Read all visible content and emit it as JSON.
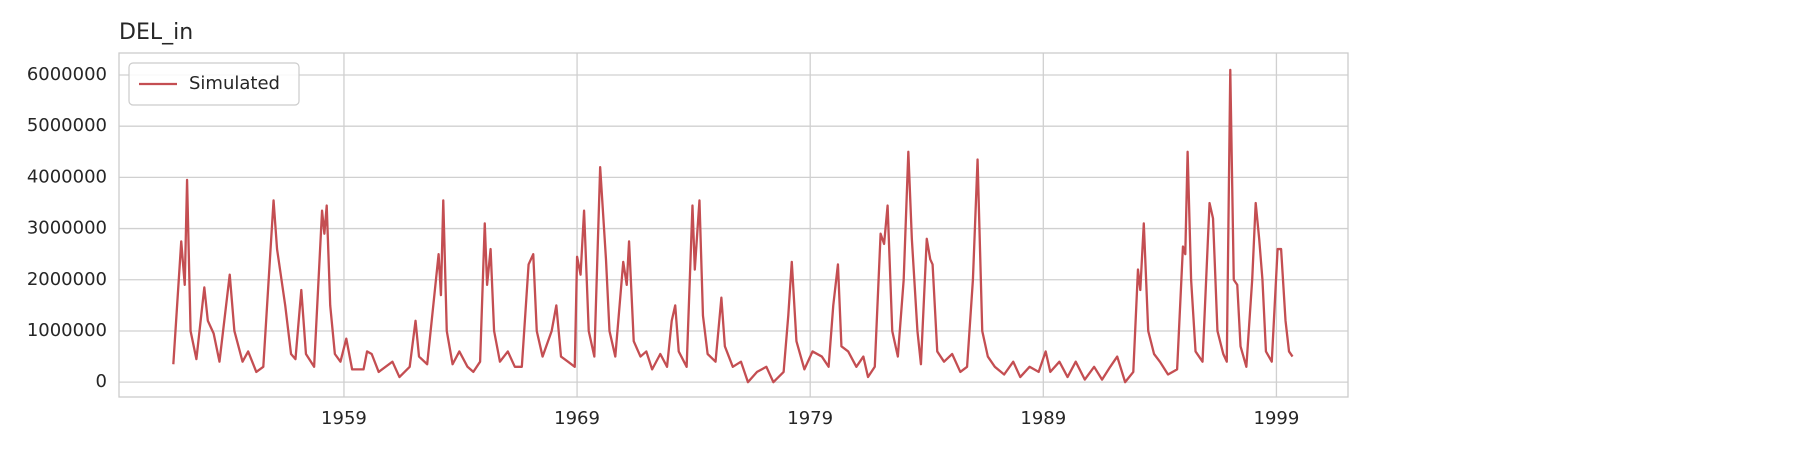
{
  "chart_data": {
    "type": "line",
    "title": "DEL_in",
    "legend": "upper left",
    "grid": true,
    "xlim": [
      1949.35,
      2002.07
    ],
    "xticks": [
      1959,
      1969,
      1979,
      1989,
      1999
    ],
    "ylim": [
      -290000,
      6430000
    ],
    "yticks": [
      0,
      1000000,
      2000000,
      3000000,
      4000000,
      5000000,
      6000000
    ],
    "x": [
      1951.68,
      1952.02,
      1952.17,
      1952.27,
      1952.42,
      1952.67,
      1953.01,
      1953.16,
      1953.41,
      1953.66,
      1954.1,
      1954.3,
      1954.65,
      1954.89,
      1955.24,
      1955.54,
      1955.98,
      1956.13,
      1956.48,
      1956.73,
      1956.92,
      1957.17,
      1957.37,
      1957.72,
      1958.06,
      1958.16,
      1958.26,
      1958.41,
      1958.61,
      1958.85,
      1959.1,
      1959.35,
      1959.84,
      1959.99,
      1960.19,
      1960.49,
      1961.08,
      1961.38,
      1961.82,
      1962.07,
      1962.22,
      1962.57,
      1963.06,
      1963.16,
      1963.26,
      1963.41,
      1963.66,
      1963.95,
      1964.3,
      1964.55,
      1964.84,
      1965.04,
      1965.14,
      1965.29,
      1965.44,
      1965.69,
      1966.03,
      1966.33,
      1966.63,
      1966.92,
      1967.12,
      1967.27,
      1967.52,
      1967.91,
      1968.11,
      1968.31,
      1968.61,
      1968.9,
      1969.0,
      1969.15,
      1969.3,
      1969.5,
      1969.74,
      1969.99,
      1970.24,
      1970.39,
      1970.64,
      1970.98,
      1971.13,
      1971.23,
      1971.43,
      1971.72,
      1971.97,
      1972.22,
      1972.57,
      1972.86,
      1973.06,
      1973.21,
      1973.36,
      1973.7,
      1973.95,
      1974.05,
      1974.25,
      1974.4,
      1974.6,
      1974.94,
      1975.19,
      1975.34,
      1975.68,
      1976.03,
      1976.33,
      1976.72,
      1977.12,
      1977.42,
      1977.86,
      1978.06,
      1978.21,
      1978.41,
      1978.75,
      1979.1,
      1979.5,
      1979.79,
      1979.99,
      1980.19,
      1980.34,
      1980.63,
      1980.98,
      1981.28,
      1981.48,
      1981.77,
      1982.02,
      1982.17,
      1982.32,
      1982.52,
      1982.76,
      1983.01,
      1983.21,
      1983.36,
      1983.6,
      1983.75,
      1984.0,
      1984.15,
      1984.25,
      1984.45,
      1984.74,
      1985.09,
      1985.44,
      1985.73,
      1985.98,
      1986.18,
      1986.38,
      1986.62,
      1986.92,
      1987.32,
      1987.71,
      1988.01,
      1988.41,
      1988.8,
      1989.1,
      1989.3,
      1989.69,
      1990.04,
      1990.39,
      1990.78,
      1991.18,
      1991.52,
      1991.87,
      1992.17,
      1992.51,
      1992.86,
      1993.06,
      1993.16,
      1993.31,
      1993.5,
      1993.75,
      1994.0,
      1994.35,
      1994.74,
      1994.99,
      1995.09,
      1995.19,
      1995.34,
      1995.53,
      1995.83,
      1996.13,
      1996.28,
      1996.47,
      1996.72,
      1996.87,
      1997.02,
      1997.17,
      1997.32,
      1997.46,
      1997.71,
      1997.96,
      1998.11,
      1998.26,
      1998.4,
      1998.55,
      1998.8,
      1999.05,
      1999.2,
      1999.39,
      1999.54,
      1999.69
    ],
    "series": [
      {
        "name": "Simulated",
        "color": "#c44e52",
        "values": [
          350000,
          2750000,
          1900000,
          3950000,
          1000000,
          450000,
          1850000,
          1200000,
          950000,
          400000,
          2100000,
          1000000,
          400000,
          600000,
          200000,
          300000,
          3550000,
          2600000,
          1500000,
          550000,
          450000,
          1800000,
          550000,
          300000,
          3350000,
          2900000,
          3450000,
          1500000,
          550000,
          400000,
          850000,
          250000,
          250000,
          600000,
          550000,
          200000,
          400000,
          100000,
          300000,
          1200000,
          500000,
          350000,
          2500000,
          1700000,
          3550000,
          1000000,
          350000,
          600000,
          300000,
          200000,
          400000,
          3100000,
          1900000,
          2600000,
          1000000,
          400000,
          600000,
          300000,
          300000,
          2300000,
          2500000,
          1000000,
          500000,
          1000000,
          1500000,
          500000,
          400000,
          300000,
          2450000,
          2100000,
          3350000,
          1000000,
          500000,
          4200000,
          2400000,
          1000000,
          500000,
          2350000,
          1900000,
          2750000,
          800000,
          500000,
          600000,
          250000,
          550000,
          300000,
          1200000,
          1500000,
          600000,
          300000,
          3450000,
          2200000,
          3550000,
          1300000,
          550000,
          400000,
          1650000,
          700000,
          300000,
          400000,
          0,
          200000,
          300000,
          0,
          200000,
          1300000,
          2350000,
          800000,
          250000,
          600000,
          500000,
          300000,
          1500000,
          2300000,
          700000,
          600000,
          300000,
          500000,
          100000,
          300000,
          2900000,
          2700000,
          3450000,
          1000000,
          500000,
          2000000,
          4500000,
          2800000,
          1000000,
          350000,
          2800000,
          2400000,
          2300000,
          600000,
          400000,
          550000,
          200000,
          300000,
          2000000,
          4350000,
          1000000,
          500000,
          300000,
          150000,
          400000,
          100000,
          300000,
          200000,
          600000,
          200000,
          400000,
          100000,
          400000,
          50000,
          300000,
          50000,
          300000,
          500000,
          0,
          200000,
          2200000,
          1800000,
          3100000,
          1000000,
          550000,
          400000,
          150000,
          250000,
          2650000,
          2500000,
          4500000,
          2000000,
          600000,
          400000,
          3500000,
          3200000,
          1000000,
          550000,
          400000,
          6100000,
          2000000,
          1900000,
          700000,
          300000,
          2000000,
          3500000,
          2800000,
          2000000,
          600000,
          400000,
          2600000,
          2600000,
          1200000,
          600000,
          500000
        ]
      }
    ]
  }
}
